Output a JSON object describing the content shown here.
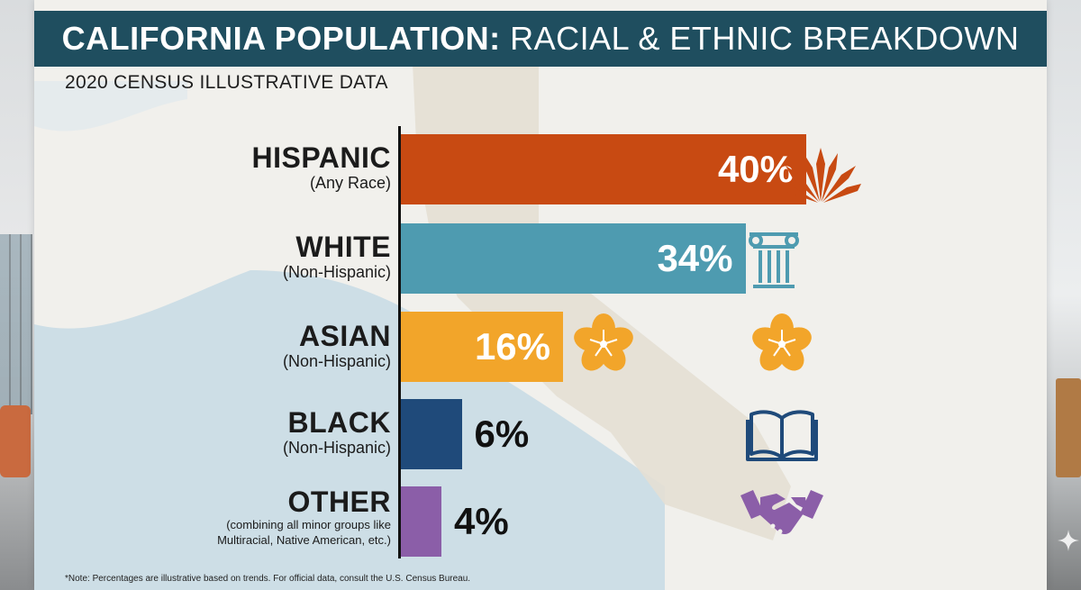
{
  "title": {
    "bold": "CALIFORNIA POPULATION:",
    "regular": " RACIAL & ETHNIC BREAKDOWN"
  },
  "subtitle": "2020 CENSUS ILLUSTRATIVE DATA",
  "note": "*Note: Percentages are illustrative based on trends. For official data, consult the U.S. Census Bureau.",
  "chart_data": {
    "type": "bar",
    "orientation": "horizontal",
    "title": "CALIFORNIA POPULATION: RACIAL & ETHNIC BREAKDOWN",
    "subtitle": "2020 CENSUS ILLUSTRATIVE DATA",
    "unit": "%",
    "xlim": [
      0,
      40
    ],
    "categories": [
      "HISPANIC",
      "WHITE",
      "ASIAN",
      "BLACK",
      "OTHER"
    ],
    "category_notes": [
      "(Any Race)",
      "(Non-Hispanic)",
      "(Non-Hispanic)",
      "(Non-Hispanic)",
      "(combining all minor groups like Multiracial, Native American, etc.)"
    ],
    "values": [
      40,
      34,
      16,
      6,
      4
    ],
    "value_labels": [
      "40%",
      "34%",
      "16%",
      "6%",
      "4%"
    ],
    "colors": [
      "#c84a12",
      "#4e9bb0",
      "#f2a52a",
      "#1f4a7a",
      "#8b5ea8"
    ],
    "icons": [
      "agave-icon",
      "column-icon",
      "cherry-blossom-icon",
      "open-book-icon",
      "handshake-icon"
    ]
  }
}
